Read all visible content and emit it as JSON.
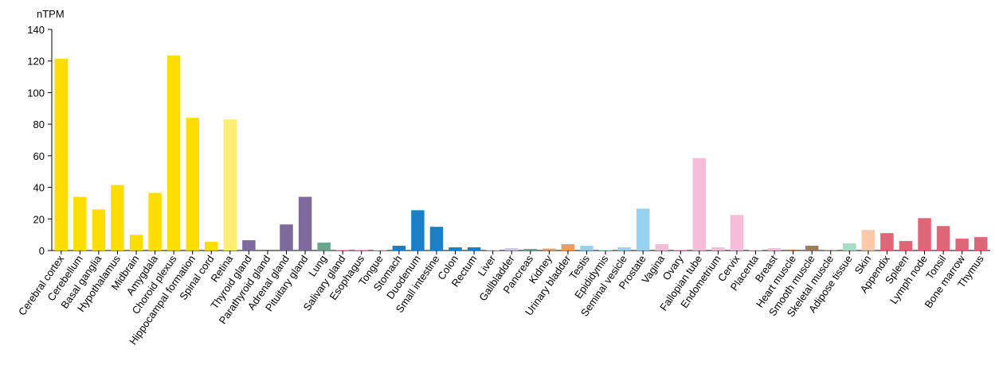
{
  "chart_data": {
    "type": "bar",
    "y_label": "nTPM",
    "categories": [
      "Cerebral cortex",
      "Cerebellum",
      "Basal ganglia",
      "Hypothalamus",
      "Midbrain",
      "Amygdala",
      "Choroid plexus",
      "Hippocampal formation",
      "Spinal cord",
      "Retina",
      "Thyroid gland",
      "Parathyroid gland",
      "Adrenal gland",
      "Pituitary gland",
      "Lung",
      "Salivary gland",
      "Esophagus",
      "Tongue",
      "Stomach",
      "Duodenum",
      "Small intestine",
      "Colon",
      "Rectum",
      "Liver",
      "Gallbladder",
      "Pancreas",
      "Kidney",
      "Urinary bladder",
      "Testis",
      "Epididymis",
      "Seminal vesicle",
      "Prostate",
      "Vagina",
      "Ovary",
      "Fallopian tube",
      "Endometrium",
      "Cervix",
      "Placenta",
      "Breast",
      "Heart muscle",
      "Smooth muscle",
      "Skeletal muscle",
      "Adipose tissue",
      "Skin",
      "Appendix",
      "Spleen",
      "Lymph node",
      "Tonsil",
      "Bone marrow",
      "Thymus"
    ],
    "values": [
      121.5,
      34,
      26,
      41.5,
      10,
      36.5,
      123.5,
      84,
      5.5,
      83,
      6.5,
      0,
      16.5,
      34,
      5,
      0.5,
      0.5,
      0.3,
      3,
      25.5,
      15,
      2,
      2,
      0.3,
      1.5,
      1,
      1.2,
      4,
      3,
      0.3,
      2,
      26.5,
      4,
      0.5,
      58.5,
      2,
      22.5,
      0.3,
      1.5,
      0.5,
      3,
      0.3,
      4.5,
      13,
      11,
      6,
      20.5,
      15.5,
      7.5,
      8.5
    ],
    "colors": [
      "#ffdd00",
      "#ffdd00",
      "#ffdd00",
      "#ffdd00",
      "#ffdd00",
      "#ffdd00",
      "#ffdd00",
      "#ffdd00",
      "#ffdd00",
      "#ffed73",
      "#7f6a9e",
      "#7f6a9e",
      "#7f6a9e",
      "#7f6a9e",
      "#6aa58e",
      "#f3b5c8",
      "#f3b5c8",
      "#f3b5c8",
      "#1a7fc4",
      "#1a7fc4",
      "#1a7fc4",
      "#1a7fc4",
      "#1a7fc4",
      "#cfc6e3",
      "#cfc6e3",
      "#6aa58e",
      "#f09c5a",
      "#f09c5a",
      "#96d2f0",
      "#96d2f0",
      "#96d2f0",
      "#96d2f0",
      "#f7bcd8",
      "#f7bcd8",
      "#f7bcd8",
      "#f7bcd8",
      "#f7bcd8",
      "#f7bcd8",
      "#f7bcd8",
      "#a07b5a",
      "#a07b5a",
      "#a07b5a",
      "#a8dcc4",
      "#fbc9a8",
      "#dd6677",
      "#dd6677",
      "#dd6677",
      "#dd6677",
      "#dd6677",
      "#dd6677"
    ],
    "ylim": [
      0,
      140
    ],
    "yticks": [
      0,
      20,
      40,
      60,
      80,
      100,
      120,
      140
    ]
  }
}
